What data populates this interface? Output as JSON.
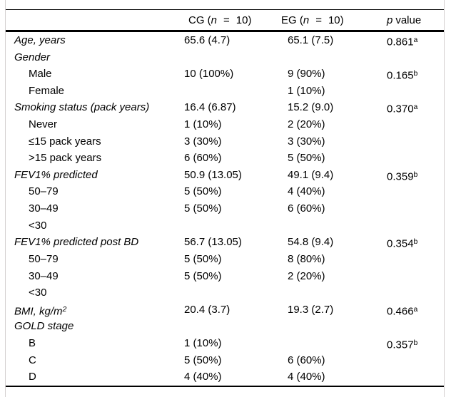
{
  "table": {
    "header": {
      "col_cg": {
        "pre": "CG (",
        "var": "n",
        "eq": "=",
        "count": "10)"
      },
      "col_eg": {
        "pre": "EG (",
        "var": "n",
        "eq": "=",
        "count": "10)"
      },
      "col_p": {
        "var": "p",
        "label": "value"
      }
    },
    "rows": [
      {
        "label": "Age, years",
        "italic": true,
        "cg": "65.6 (4.7)",
        "eg": "65.1 (7.5)",
        "p": "0.861",
        "sup": "a"
      },
      {
        "label": "Gender",
        "italic": true,
        "cg": "",
        "eg": "",
        "p": ""
      },
      {
        "label": "Male",
        "indent": true,
        "cg": "10 (100%)",
        "eg": "9 (90%)",
        "p": "0.165",
        "sup": "b"
      },
      {
        "label": "Female",
        "indent": true,
        "cg": "",
        "eg": "1 (10%)",
        "p": ""
      },
      {
        "label": "Smoking status (pack years)",
        "italic": true,
        "cg": "16.4 (6.87)",
        "eg": "15.2 (9.0)",
        "p": "0.370",
        "sup": "a"
      },
      {
        "label": "Never",
        "indent": true,
        "cg": "1 (10%)",
        "eg": "2 (20%)",
        "p": ""
      },
      {
        "label": "≤15 pack years",
        "indent": true,
        "cg": "3 (30%)",
        "eg": "3 (30%)",
        "p": ""
      },
      {
        "label": ">15 pack years",
        "indent": true,
        "cg": "6 (60%)",
        "eg": "5 (50%)",
        "p": ""
      },
      {
        "label": "FEV1% predicted",
        "italic": true,
        "cg": "50.9 (13.05)",
        "eg": "49.1 (9.4)",
        "p": "0.359",
        "sup": "b"
      },
      {
        "label": "50–79",
        "indent": true,
        "cg": "5 (50%)",
        "eg": "4 (40%)",
        "p": ""
      },
      {
        "label": "30–49",
        "indent": true,
        "cg": "5 (50%)",
        "eg": "6 (60%)",
        "p": ""
      },
      {
        "label": "<30",
        "indent": true,
        "cg": "",
        "eg": "",
        "p": ""
      },
      {
        "label": "FEV1% predicted post BD",
        "italic": true,
        "cg": "56.7 (13.05)",
        "eg": "54.8 (9.4)",
        "p": "0.354",
        "sup": "b"
      },
      {
        "label": "50–79",
        "indent": true,
        "cg": "5 (50%)",
        "eg": "8 (80%)",
        "p": ""
      },
      {
        "label": "30–49",
        "indent": true,
        "cg": "5 (50%)",
        "eg": "2 (20%)",
        "p": ""
      },
      {
        "label": "<30",
        "indent": true,
        "cg": "",
        "eg": "",
        "p": ""
      },
      {
        "label": "BMI, kg/m",
        "label_sup": "2",
        "italic": true,
        "cg": "20.4 (3.7)",
        "eg": "19.3 (2.7)",
        "p": "0.466",
        "sup": "a"
      },
      {
        "label": "GOLD stage",
        "italic": true,
        "cg": "",
        "eg": "",
        "p": ""
      },
      {
        "label": "B",
        "indent": true,
        "cg": "1 (10%)",
        "eg": "",
        "p": "0.357",
        "sup": "b"
      },
      {
        "label": "C",
        "indent": true,
        "cg": "5 (50%)",
        "eg": "6 (60%)",
        "p": ""
      },
      {
        "label": "D",
        "indent": true,
        "cg": "4 (40%)",
        "eg": "4 (40%)",
        "p": ""
      }
    ]
  }
}
